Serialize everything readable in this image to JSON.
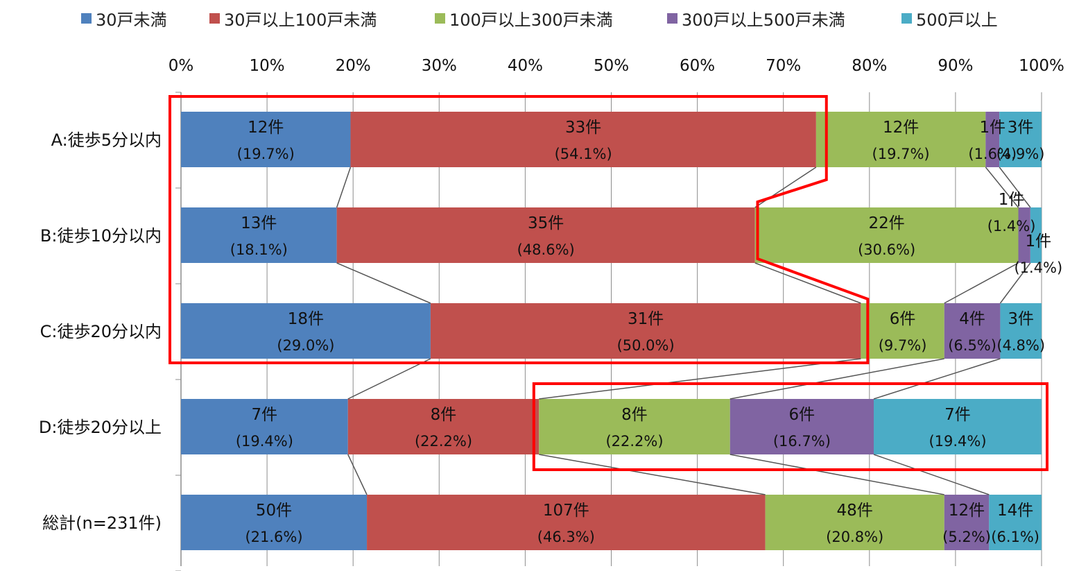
{
  "chart_data": {
    "type": "bar",
    "orientation": "horizontal",
    "stacked": "percent",
    "grid": true,
    "legend_position": "top",
    "x_ticks": [
      "0%",
      "10%",
      "20%",
      "30%",
      "40%",
      "50%",
      "60%",
      "70%",
      "80%",
      "90%",
      "100%"
    ],
    "xlim": [
      0,
      100
    ],
    "categories": [
      "A:徒歩5分以内",
      "B:徒歩10分以内",
      "C:徒歩20分以内",
      "D:徒歩20分以上",
      "総計(n=231件)"
    ],
    "series": [
      {
        "name": "30戸未満",
        "color": "#4f81bd",
        "values": [
          19.7,
          18.1,
          29.0,
          19.4,
          21.6
        ],
        "counts": [
          "12件",
          "13件",
          "18件",
          "7件",
          "50件"
        ],
        "percent_labels": [
          "(19.7%)",
          "(18.1%)",
          "(29.0%)",
          "(19.4%)",
          "(21.6%)"
        ]
      },
      {
        "name": "30戸以上100戸未満",
        "color": "#c0504d",
        "values": [
          54.1,
          48.6,
          50.0,
          22.2,
          46.3
        ],
        "counts": [
          "33件",
          "35件",
          "31件",
          "8件",
          "107件"
        ],
        "percent_labels": [
          "(54.1%)",
          "(48.6%)",
          "(50.0%)",
          "(22.2%)",
          "(46.3%)"
        ]
      },
      {
        "name": "100戸以上300戸未満",
        "color": "#9bbb59",
        "values": [
          19.7,
          30.6,
          9.7,
          22.2,
          20.8
        ],
        "counts": [
          "12件",
          "22件",
          "6件",
          "8件",
          "48件"
        ],
        "percent_labels": [
          "(19.7%)",
          "(30.6%)",
          "(9.7%)",
          "(22.2%)",
          "(20.8%)"
        ]
      },
      {
        "name": "300戸以上500戸未満",
        "color": "#8064a2",
        "values": [
          1.6,
          1.4,
          6.5,
          16.7,
          5.2
        ],
        "counts": [
          "1件",
          "1件",
          "4件",
          "6件",
          "12件"
        ],
        "percent_labels": [
          "(1.6%)",
          "(1.4%)",
          "(6.5%)",
          "(16.7%)",
          "(5.2%)"
        ]
      },
      {
        "name": "500戸以上",
        "color": "#4bacc6",
        "values": [
          4.9,
          1.4,
          4.8,
          19.4,
          6.1
        ],
        "counts": [
          "3件",
          "1件",
          "3件",
          "7件",
          "14件"
        ],
        "percent_labels": [
          "(4.9%)",
          "(1.4%)",
          "(4.8%)",
          "(19.4%)",
          "(6.1%)"
        ]
      }
    ],
    "series_lines": true,
    "highlight_color": "#ff0000"
  }
}
